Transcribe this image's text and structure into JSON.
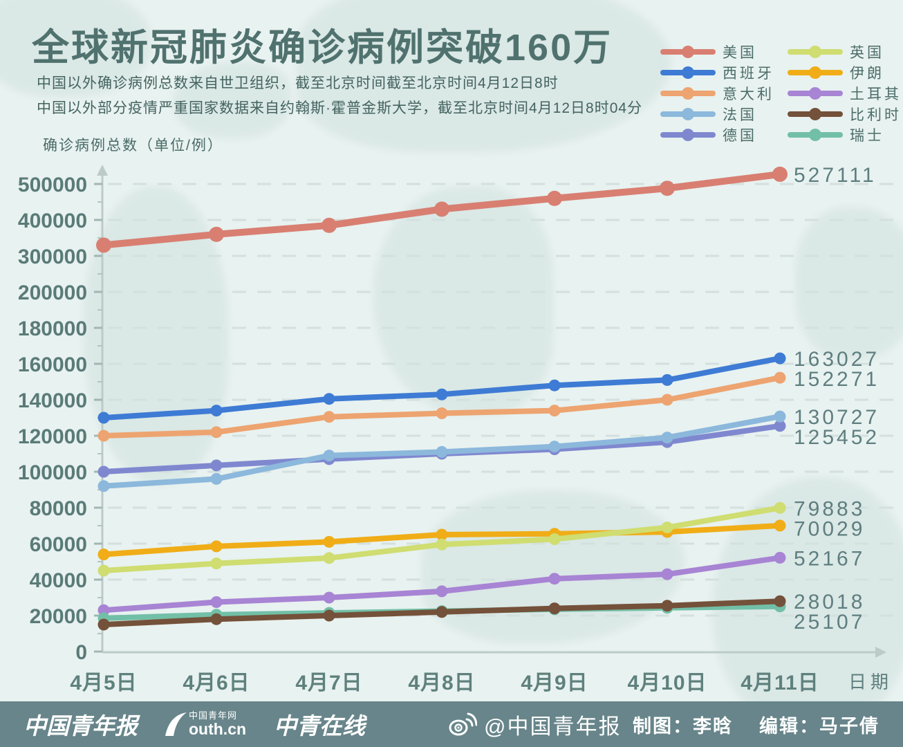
{
  "header": {
    "title": "全球新冠肺炎确诊病例突破160万",
    "subtitle1": "中国以外确诊病例总数来自世卫组织，截至北京时间截至北京时间4月12日8时",
    "subtitle2": "中国以外部分疫情严重国家数据来自约翰斯·霍普金斯大学，截至北京时间4月12日8时04分"
  },
  "chart_data": {
    "type": "line",
    "title": "全球新冠肺炎确诊病例突破160万",
    "ylabel": "确诊病例总数（单位/例）",
    "xlabel": "日期",
    "categories": [
      "4月5日",
      "4月6日",
      "4月7日",
      "4月8日",
      "4月9日",
      "4月10日",
      "4月11日"
    ],
    "yticks": [
      0,
      20000,
      40000,
      60000,
      80000,
      100000,
      120000,
      140000,
      160000,
      180000,
      200000,
      300000,
      400000,
      500000
    ],
    "axis_note": "y axis is compressed above 200000: one gridline step equals 100000 there, 20000 below",
    "grid": "dashed horizontal lines at every labeled tick",
    "legend_position": "top-right, two columns",
    "series": [
      {
        "name": "美国",
        "color": "#d87f72",
        "end_label": "527111",
        "values": [
          330000,
          360000,
          385000,
          430000,
          460000,
          488000,
          527111
        ]
      },
      {
        "name": "西班牙",
        "color": "#3e7bd4",
        "end_label": "163027",
        "values": [
          130000,
          134000,
          140500,
          143000,
          148000,
          151000,
          163027
        ]
      },
      {
        "name": "意大利",
        "color": "#eda470",
        "end_label": "152271",
        "values": [
          120000,
          122000,
          130500,
          132500,
          134000,
          140000,
          152271
        ]
      },
      {
        "name": "法国",
        "color": "#8cb8dc",
        "end_label": "130727",
        "values": [
          92000,
          96000,
          109000,
          111000,
          114000,
          119000,
          130727
        ]
      },
      {
        "name": "德国",
        "color": "#7f88cf",
        "end_label": "125452",
        "values": [
          100000,
          103500,
          107000,
          110000,
          112500,
          116500,
          125452
        ]
      },
      {
        "name": "英国",
        "color": "#cfdd71",
        "end_label": "79883",
        "values": [
          45000,
          49000,
          52000,
          59500,
          62500,
          69000,
          79883
        ]
      },
      {
        "name": "伊朗",
        "color": "#f0ad17",
        "end_label": "70029",
        "values": [
          54000,
          58500,
          61000,
          65000,
          65500,
          66500,
          70029
        ]
      },
      {
        "name": "土耳其",
        "color": "#a884d4",
        "end_label": "52167",
        "values": [
          23000,
          27500,
          30000,
          33500,
          40500,
          43000,
          52167
        ]
      },
      {
        "name": "比利时",
        "color": "#74513a",
        "end_label": "28018",
        "values": [
          15000,
          18000,
          20000,
          22000,
          24000,
          25500,
          28018
        ]
      },
      {
        "name": "瑞士",
        "color": "#72bfa7",
        "end_label": "25107",
        "values": [
          18500,
          20500,
          21500,
          22500,
          23500,
          24300,
          25107
        ]
      }
    ]
  },
  "footer": {
    "logo1": "中国青年报",
    "logo2_badge": "中国青年网",
    "logo2_text": "outh.cn",
    "logo3": "中青在线",
    "weibo_handle": "@中国青年报",
    "credit_maker": "制图：李晗",
    "credit_editor": "编辑：马子倩"
  }
}
